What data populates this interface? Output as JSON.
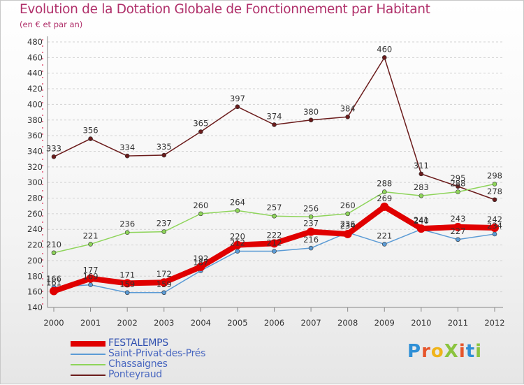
{
  "title": "Evolution de la Dotation Globale de Fonctionnement par Habitant",
  "subtitle": "(en € et par an)",
  "brand": {
    "text": "ProXiti",
    "letter_colors": [
      "#2f8fd6",
      "#e6552b",
      "#f0b41a",
      "#8bc43f",
      "#e6552b",
      "#2f8fd6",
      "#8bc43f"
    ]
  },
  "chart_data": {
    "type": "line",
    "title": "Evolution de la Dotation Globale de Fonctionnement par Habitant",
    "subtitle": "(en € et par an)",
    "x": [
      "2000",
      "2001",
      "2002",
      "2003",
      "2004",
      "2005",
      "2006",
      "2007",
      "2008",
      "2009",
      "2010",
      "2011",
      "2012"
    ],
    "yticks": [
      140,
      160,
      180,
      200,
      220,
      240,
      260,
      280,
      300,
      320,
      340,
      360,
      380,
      400,
      420,
      440,
      460,
      480
    ],
    "ylim": [
      140,
      480
    ],
    "grid": "horizontal dashed",
    "legend_position": "bottom-left",
    "series": [
      {
        "name": "Ponteyraud",
        "color": "#6b1c1c",
        "thick": false,
        "show_labels": true,
        "values": [
          333,
          356,
          334,
          335,
          365,
          397,
          374,
          380,
          384,
          460,
          311,
          295,
          278
        ]
      },
      {
        "name": "Chassaignes",
        "color": "#8ed45a",
        "thick": false,
        "show_labels": true,
        "values": [
          210,
          221,
          236,
          237,
          260,
          264,
          257,
          256,
          260,
          288,
          283,
          288,
          298
        ]
      },
      {
        "name": "Saint-Privat-des-Prés",
        "color": "#5b9bd5",
        "thick": false,
        "show_labels": true,
        "values": [
          166,
          169,
          159,
          159,
          187,
          212,
          212,
          216,
          236,
          221,
          240,
          227,
          234
        ]
      },
      {
        "name": "FESTALEMPS",
        "color": "#e00000",
        "thick": true,
        "show_labels": true,
        "values": [
          161,
          177,
          171,
          172,
          192,
          220,
          222,
          237,
          234,
          269,
          241,
          243,
          242
        ]
      }
    ],
    "legend_order": [
      "FESTALEMPS",
      "Saint-Privat-des-Prés",
      "Chassaignes",
      "Ponteyraud"
    ]
  }
}
